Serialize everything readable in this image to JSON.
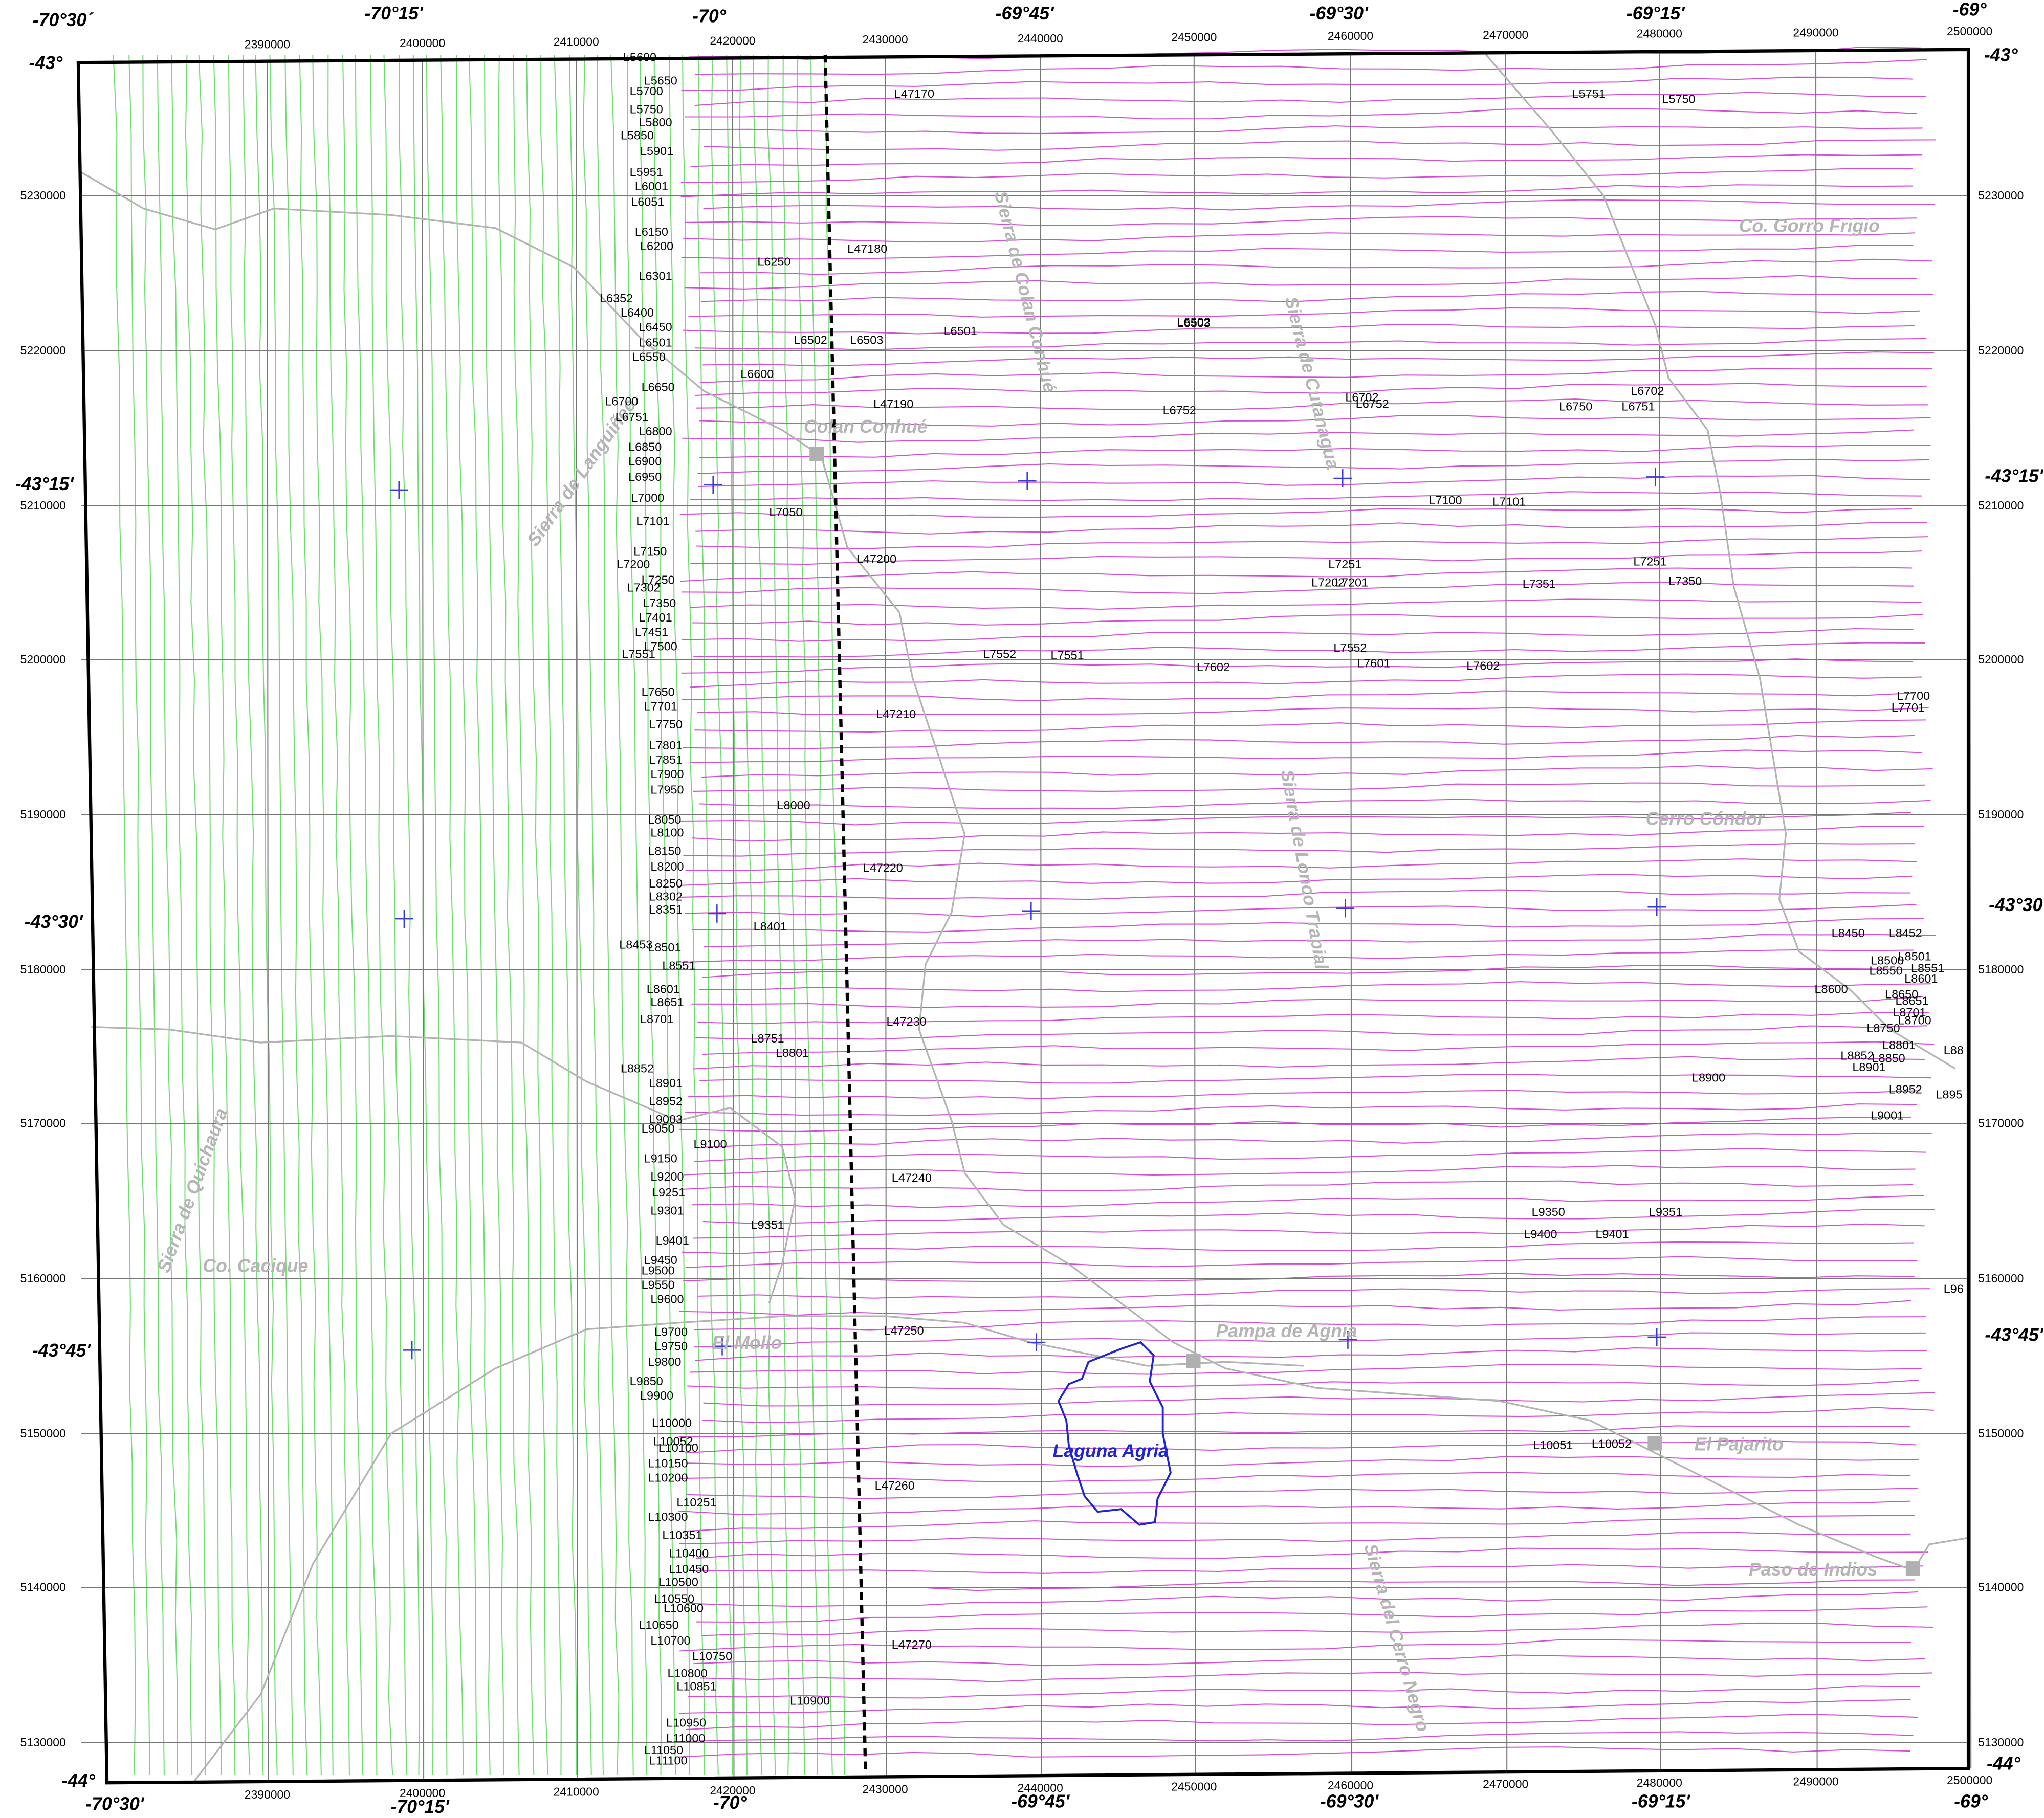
{
  "map": {
    "top_degrees": [
      "-70°30´",
      "-70°15'",
      "-70°",
      "-69°45'",
      "-69°30'",
      "-69°15'",
      "-69°"
    ],
    "bottom_degrees": [
      "-70°30'",
      "-70°15'",
      "-70°",
      "-69°45'",
      "-69°30'",
      "-69°15'",
      "-69°"
    ],
    "left_degrees": [
      "-43°",
      "-43°15'",
      "-43°30'",
      "-43°45'",
      "-44°"
    ],
    "right_degrees": [
      "-43°",
      "-43°15'",
      "-43°30'",
      "-43°45'",
      "-44°"
    ],
    "eastings": [
      2390000,
      2400000,
      2410000,
      2420000,
      2430000,
      2440000,
      2450000,
      2460000,
      2470000,
      2480000,
      2490000,
      2500000
    ],
    "northings": [
      5230000,
      5220000,
      5210000,
      5200000,
      5190000,
      5180000,
      5170000,
      5160000,
      5150000,
      5140000,
      5130000
    ],
    "places": [
      "Co. Gorro Frigio",
      "Sierra de Colan Conhué",
      "Sierra de Cutanagua",
      "Colan Conhué",
      "Sierra de Languiñeo",
      "Cerro Cóndor",
      "Sierra de Lonco Trapial",
      "Sierra de Quichaura",
      "Co. Cacique",
      "El Mollo",
      "Pampa de Agnia",
      "Laguna Agria",
      "El Pajarito",
      "Paso de Indios",
      "Sierra del Cerro Negro"
    ],
    "line_labels": [
      "L5600",
      "L5650",
      "L5700",
      "L5750",
      "L5800",
      "L5850",
      "L5901",
      "L5951",
      "L6001",
      "L6051",
      "L6150",
      "L6200",
      "L6301",
      "L6352",
      "L6400",
      "L6450",
      "L6501",
      "L6550",
      "L6650",
      "L6700",
      "L6751",
      "L6800",
      "L6850",
      "L6900",
      "L6950",
      "L7000",
      "L7101",
      "L7150",
      "L7200",
      "L7250",
      "L7302",
      "L7350",
      "L7401",
      "L7451",
      "L7500",
      "L7551",
      "L7650",
      "L7701",
      "L7750",
      "L7801",
      "L7851",
      "L7900",
      "L7950",
      "L8050",
      "L8100",
      "L8150",
      "L8200",
      "L8250",
      "L8302",
      "L8351",
      "L8453",
      "L8501",
      "L8551",
      "L8601",
      "L8651",
      "L8701",
      "L8852",
      "L8901",
      "L8952",
      "L9003",
      "L9050",
      "L9100",
      "L9150",
      "L9200",
      "L9251",
      "L9301",
      "L9401",
      "L9450",
      "L9500",
      "L9550",
      "L9600",
      "L9700",
      "L9750",
      "L9800",
      "L9850",
      "L9900",
      "L10000",
      "L10052",
      "L10100",
      "L10150",
      "L10200",
      "L10251",
      "L10300",
      "L10351",
      "L10400",
      "L10450",
      "L10500",
      "L10550",
      "L10600",
      "L10650",
      "L10700",
      "L10750",
      "L10800",
      "L10851",
      "L10900",
      "L10950",
      "L11000",
      "L11050",
      "L11100",
      "L6250",
      "L6502",
      "L6503",
      "L6600",
      "L7050",
      "L8000",
      "L8401",
      "L8751",
      "L8801",
      "L9351",
      "L47170",
      "L47180",
      "L47190",
      "L47200",
      "L47210",
      "L47220",
      "L47230",
      "L47240",
      "L47250",
      "L47260",
      "L47270",
      "L6501",
      "L6503",
      "L6502",
      "L6752",
      "L6702",
      "L6752",
      "L6750",
      "L6751",
      "L6702",
      "L7100",
      "L7101",
      "L7251",
      "L7202",
      "L7201",
      "L7351",
      "L7251",
      "L7350",
      "L7552",
      "L7551",
      "L7602",
      "L7552",
      "L7601",
      "L7602",
      "L7700",
      "L7701",
      "L5751",
      "L5750",
      "L8450",
      "L8452",
      "L8500",
      "L8501",
      "L8550",
      "L8551",
      "L8601",
      "L8600",
      "L8650",
      "L8651",
      "L8701",
      "L8700",
      "L8750",
      "L8801",
      "L8850",
      "L8852",
      "L8901",
      "L8952",
      "L9001",
      "L8900",
      "L9350",
      "L9351",
      "L9400",
      "L9401",
      "L10051",
      "L10052",
      "L88",
      "L895",
      "L96"
    ]
  }
}
